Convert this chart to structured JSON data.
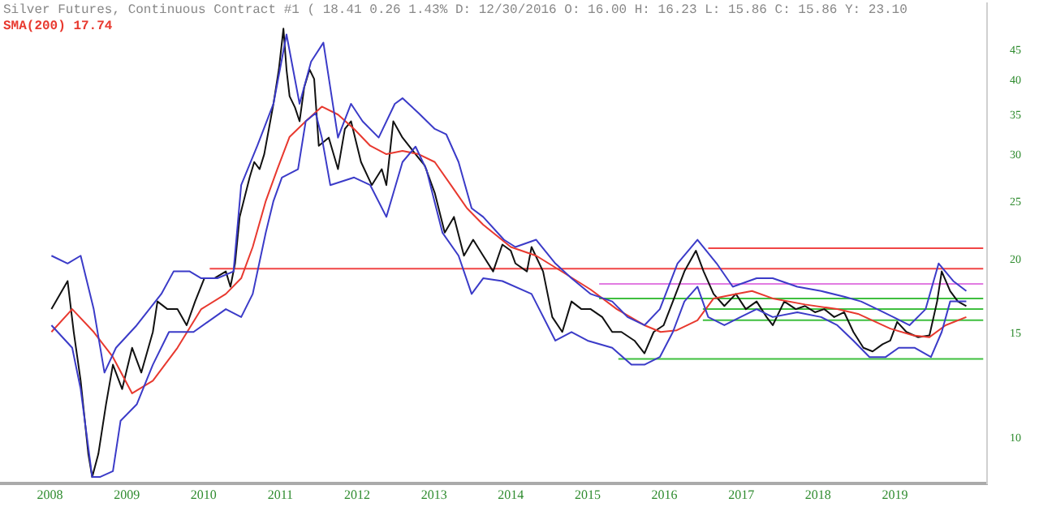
{
  "chart_data": {
    "type": "line",
    "title": "Silver Futures, Continuous Contract #1 ( 18.41 0.26 1.43% D: 12/30/2016 O: 16.00 H: 16.23 L: 15.86 C: 15.86 Y: 23.10",
    "subtitle": "SMA(200) 17.74",
    "xlim": [
      2007.35,
      2020.2
    ],
    "xticks": [
      2008,
      2009,
      2010,
      2011,
      2012,
      2013,
      2014,
      2015,
      2016,
      2017,
      2018,
      2019
    ],
    "ylim": [
      8.4,
      54
    ],
    "yticks": [
      10,
      15,
      20,
      25,
      30,
      35,
      40,
      45
    ],
    "log": "y",
    "grid": false,
    "legend": false,
    "marker": "none",
    "line_style": "solid",
    "series": [
      {
        "color": "#3b3bc8",
        "x": [
          2008.02,
          2008.23,
          2008.4,
          2008.57,
          2008.71,
          2008.86,
          2009.13,
          2009.45,
          2009.61,
          2009.82,
          2009.97,
          2010.18,
          2010.39,
          2010.49,
          2010.7,
          2010.91,
          2011.08,
          2011.25,
          2011.4,
          2011.56,
          2011.75,
          2011.92,
          2012.07,
          2012.28,
          2012.49,
          2012.59,
          2012.8,
          2013.01,
          2013.16,
          2013.32,
          2013.49,
          2013.64,
          2013.91,
          2014.06,
          2014.33,
          2014.58,
          2014.79,
          2015.04,
          2015.32,
          2015.52,
          2015.74,
          2015.94,
          2016.17,
          2016.43,
          2016.68,
          2016.89,
          2017.2,
          2017.41,
          2017.73,
          2018.04,
          2018.35,
          2018.56,
          2018.77,
          2018.98,
          2019.19,
          2019.4,
          2019.57,
          2019.76,
          2019.93
        ],
        "values": [
          20.3,
          19.7,
          20.3,
          16.5,
          12.9,
          14.2,
          15.5,
          17.5,
          19.1,
          19.1,
          18.6,
          18.6,
          19.1,
          26.7,
          31.1,
          36.6,
          47.9,
          36.6,
          43.1,
          46.4,
          32.1,
          36.6,
          34.2,
          32.1,
          36.6,
          37.4,
          35.3,
          33.2,
          32.5,
          29.2,
          24.4,
          23.6,
          21.6,
          21.0,
          21.6,
          19.7,
          18.6,
          17.5,
          17.0,
          16.0,
          15.5,
          16.5,
          19.7,
          21.6,
          19.7,
          18.0,
          18.6,
          18.6,
          18.0,
          17.7,
          17.3,
          17.0,
          16.5,
          16.0,
          15.5,
          16.5,
          19.7,
          18.4,
          17.7
        ]
      },
      {
        "color": "#3b3bc8",
        "x": [
          2008.02,
          2008.29,
          2008.4,
          2008.55,
          2008.65,
          2008.82,
          2008.92,
          2009.13,
          2009.34,
          2009.55,
          2009.87,
          2010.29,
          2010.49,
          2010.64,
          2010.81,
          2010.91,
          2011.02,
          2011.23,
          2011.33,
          2011.46,
          2011.54,
          2011.65,
          2011.96,
          2012.17,
          2012.38,
          2012.59,
          2012.76,
          2012.9,
          2013.11,
          2013.32,
          2013.49,
          2013.64,
          2013.89,
          2014.27,
          2014.58,
          2014.79,
          2015.0,
          2015.32,
          2015.57,
          2015.74,
          2015.94,
          2016.11,
          2016.26,
          2016.43,
          2016.57,
          2016.78,
          2016.99,
          2017.2,
          2017.41,
          2017.73,
          2018.04,
          2018.25,
          2018.46,
          2018.67,
          2018.88,
          2019.05,
          2019.26,
          2019.47,
          2019.61,
          2019.72,
          2019.93
        ],
        "values": [
          15.5,
          14.2,
          12.1,
          8.6,
          8.6,
          8.8,
          10.7,
          11.4,
          13.3,
          15.1,
          15.1,
          16.5,
          16.0,
          17.5,
          22.2,
          25.1,
          27.5,
          28.4,
          34.2,
          35.3,
          32.1,
          26.7,
          27.5,
          26.7,
          23.6,
          29.2,
          31.0,
          28.4,
          22.2,
          20.3,
          17.5,
          18.6,
          18.4,
          17.5,
          14.6,
          15.1,
          14.6,
          14.2,
          13.3,
          13.3,
          13.7,
          15.1,
          17.0,
          18.0,
          16.0,
          15.5,
          16.0,
          16.5,
          16.0,
          16.3,
          16.0,
          15.5,
          14.6,
          13.7,
          13.7,
          14.2,
          14.2,
          13.7,
          15.1,
          17.0,
          17.0
        ]
      },
      {
        "color": "#e8392f",
        "x": [
          2008.02,
          2008.29,
          2008.57,
          2008.82,
          2009.07,
          2009.34,
          2009.66,
          2009.97,
          2010.29,
          2010.49,
          2010.64,
          2010.81,
          2010.96,
          2011.12,
          2011.33,
          2011.54,
          2011.75,
          2011.96,
          2012.17,
          2012.38,
          2012.59,
          2012.8,
          2013.01,
          2013.22,
          2013.43,
          2013.64,
          2014.0,
          2014.33,
          2014.69,
          2015.04,
          2015.38,
          2015.74,
          2015.95,
          2016.16,
          2016.43,
          2016.64,
          2016.93,
          2017.14,
          2017.41,
          2017.83,
          2018.25,
          2018.52,
          2018.94,
          2019.24,
          2019.45,
          2019.66,
          2019.93
        ],
        "values": [
          15.1,
          16.5,
          15.1,
          13.7,
          11.9,
          12.5,
          14.2,
          16.5,
          17.5,
          18.6,
          21.0,
          25.1,
          28.4,
          32.2,
          34.2,
          36.2,
          35.1,
          33.2,
          31.1,
          30.1,
          30.5,
          30.1,
          29.2,
          26.7,
          24.4,
          22.9,
          21.0,
          20.3,
          19.0,
          17.8,
          16.5,
          15.5,
          15.1,
          15.2,
          15.8,
          17.2,
          17.5,
          17.7,
          17.2,
          16.8,
          16.5,
          16.2,
          15.3,
          14.9,
          14.8,
          15.5,
          16.0
        ]
      },
      {
        "color": "#111111",
        "x": [
          2008.02,
          2008.23,
          2008.31,
          2008.4,
          2008.5,
          2008.55,
          2008.63,
          2008.73,
          2008.82,
          2008.94,
          2009.07,
          2009.19,
          2009.34,
          2009.4,
          2009.53,
          2009.66,
          2009.78,
          2009.89,
          2010.01,
          2010.14,
          2010.29,
          2010.35,
          2010.41,
          2010.47,
          2010.6,
          2010.66,
          2010.73,
          2010.79,
          2010.91,
          2010.98,
          2011.04,
          2011.08,
          2011.12,
          2011.19,
          2011.25,
          2011.31,
          2011.38,
          2011.44,
          2011.5,
          2011.63,
          2011.75,
          2011.84,
          2011.92,
          2012.05,
          2012.19,
          2012.32,
          2012.38,
          2012.47,
          2012.59,
          2012.76,
          2012.88,
          2013.01,
          2013.14,
          2013.26,
          2013.39,
          2013.51,
          2013.64,
          2013.77,
          2013.89,
          2014.0,
          2014.06,
          2014.21,
          2014.27,
          2014.42,
          2014.54,
          2014.67,
          2014.79,
          2014.92,
          2015.04,
          2015.19,
          2015.32,
          2015.44,
          2015.61,
          2015.74,
          2015.86,
          2015.99,
          2016.11,
          2016.26,
          2016.41,
          2016.51,
          2016.64,
          2016.78,
          2016.93,
          2017.06,
          2017.2,
          2017.33,
          2017.41,
          2017.56,
          2017.71,
          2017.83,
          2017.96,
          2018.08,
          2018.21,
          2018.34,
          2018.46,
          2018.59,
          2018.71,
          2018.84,
          2018.94,
          2019.03,
          2019.15,
          2019.3,
          2019.45,
          2019.55,
          2019.61,
          2019.72,
          2019.82,
          2019.93
        ],
        "values": [
          16.5,
          18.4,
          15.1,
          12.5,
          9.4,
          8.6,
          9.4,
          11.4,
          13.3,
          12.1,
          14.2,
          12.9,
          15.1,
          17.0,
          16.5,
          16.5,
          15.5,
          17.0,
          18.6,
          18.6,
          19.1,
          18.0,
          19.7,
          23.6,
          27.5,
          29.2,
          28.4,
          30.1,
          36.6,
          41.8,
          49.0,
          41.8,
          37.7,
          36.1,
          34.2,
          39.0,
          41.8,
          40.3,
          31.1,
          32.1,
          28.4,
          33.2,
          34.2,
          29.2,
          26.7,
          28.4,
          26.7,
          34.2,
          32.1,
          30.1,
          28.8,
          25.9,
          22.2,
          23.6,
          20.3,
          21.6,
          20.3,
          19.1,
          21.2,
          20.7,
          19.7,
          19.1,
          21.0,
          19.1,
          16.0,
          15.1,
          17.0,
          16.5,
          16.5,
          16.0,
          15.1,
          15.1,
          14.6,
          13.9,
          15.1,
          15.5,
          17.0,
          19.1,
          20.7,
          19.1,
          17.5,
          16.7,
          17.5,
          16.5,
          17.0,
          16.0,
          15.5,
          17.0,
          16.5,
          16.7,
          16.3,
          16.5,
          16.0,
          16.3,
          15.1,
          14.2,
          14.0,
          14.4,
          14.6,
          15.7,
          15.1,
          14.8,
          14.9,
          17.0,
          19.1,
          17.7,
          17.0,
          16.7
        ]
      },
      {
        "color": "#f04545",
        "x": [
          2016.57,
          2020.15
        ],
        "values": [
          20.9,
          20.9
        ]
      },
      {
        "color": "#f04545",
        "x": [
          2010.08,
          2020.15
        ],
        "values": [
          19.3,
          19.3
        ]
      },
      {
        "color": "#e27be2",
        "x": [
          2015.15,
          2020.15
        ],
        "values": [
          18.2,
          18.2
        ]
      },
      {
        "color": "#3fbf3f",
        "x": [
          2015.15,
          2020.15
        ],
        "values": [
          17.2,
          17.2
        ]
      },
      {
        "color": "#3fbf3f",
        "x": [
          2016.5,
          2020.15
        ],
        "values": [
          16.5,
          16.5
        ]
      },
      {
        "color": "#3fbf3f",
        "x": [
          2016.5,
          2020.15
        ],
        "values": [
          15.8,
          15.8
        ]
      },
      {
        "color": "#3fbf3f",
        "x": [
          2015.4,
          2020.15
        ],
        "values": [
          13.6,
          13.6
        ]
      }
    ]
  }
}
